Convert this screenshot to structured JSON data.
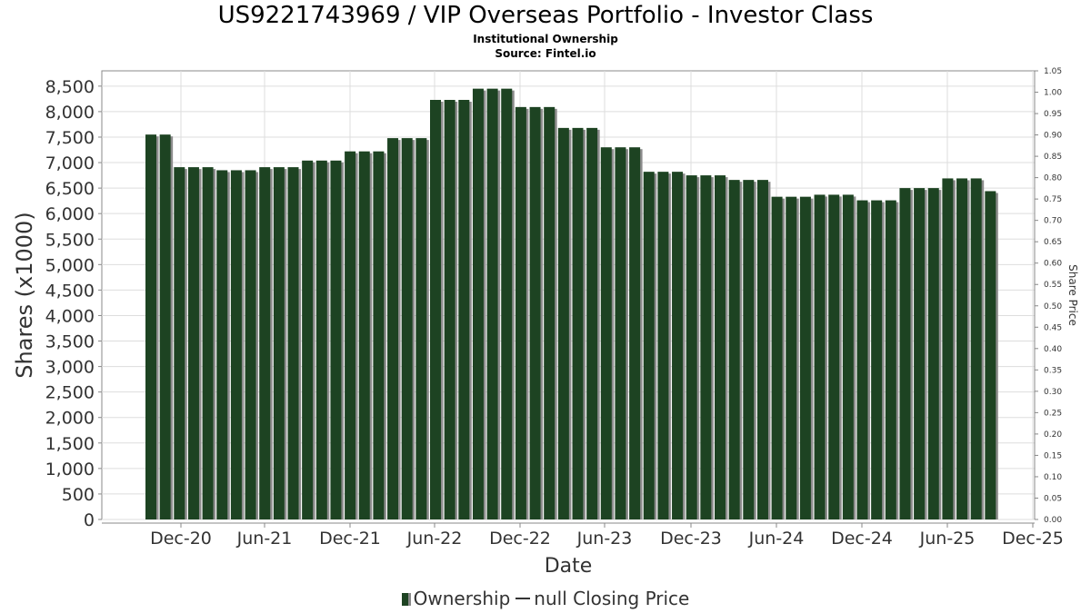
{
  "header": {
    "title": "US9221743969 / VIP Overseas Portfolio - Investor Class",
    "subtitle": "Institutional Ownership",
    "source": "Source: Fintel.io"
  },
  "legend": {
    "ownership": "Ownership",
    "price": "null Closing Price"
  },
  "colors": {
    "bar": "#1d4322",
    "bar_shadow": "#8c8c8c",
    "grid": "#dddddd",
    "plot_border": "#888888"
  },
  "chart_data": {
    "type": "bar",
    "title": "US9221743969 / VIP Overseas Portfolio - Investor Class",
    "xlabel": "Date",
    "ylabel": "Shares (x1000)",
    "y2label": "Share Price",
    "ylim": [
      0,
      8800
    ],
    "y2lim": [
      0,
      1.05
    ],
    "grid": true,
    "legend_position": "bottom",
    "y_ticks": [
      "0",
      "500",
      "1,000",
      "1,500",
      "2,000",
      "2,500",
      "3,000",
      "3,500",
      "4,000",
      "4,500",
      "5,000",
      "5,500",
      "6,000",
      "6,500",
      "7,000",
      "7,500",
      "8,000",
      "8,500"
    ],
    "y2_ticks": [
      "0.00",
      "0.05",
      "0.10",
      "0.15",
      "0.20",
      "0.25",
      "0.30",
      "0.35",
      "0.40",
      "0.45",
      "0.50",
      "0.55",
      "0.60",
      "0.65",
      "0.70",
      "0.75",
      "0.80",
      "0.85",
      "0.90",
      "0.95",
      "1.00",
      "1.05"
    ],
    "x_ticks": [
      "Dec-20",
      "Jun-21",
      "Dec-21",
      "Jun-22",
      "Dec-22",
      "Jun-23",
      "Dec-23",
      "Jun-24",
      "Dec-24",
      "Jun-25",
      "Dec-25"
    ],
    "series": [
      {
        "name": "Ownership",
        "values": [
          7550,
          7550,
          6910,
          6910,
          6910,
          6850,
          6850,
          6850,
          6910,
          6910,
          6910,
          7040,
          7040,
          7040,
          7220,
          7220,
          7220,
          7480,
          7480,
          7480,
          8230,
          8230,
          8230,
          8450,
          8450,
          8450,
          8090,
          8090,
          8090,
          7680,
          7680,
          7680,
          7300,
          7300,
          7300,
          6820,
          6820,
          6820,
          6750,
          6750,
          6750,
          6660,
          6660,
          6660,
          6330,
          6330,
          6330,
          6370,
          6370,
          6370,
          6260,
          6260,
          6260,
          6500,
          6500,
          6500,
          6690,
          6690,
          6690,
          6440
        ]
      }
    ]
  }
}
